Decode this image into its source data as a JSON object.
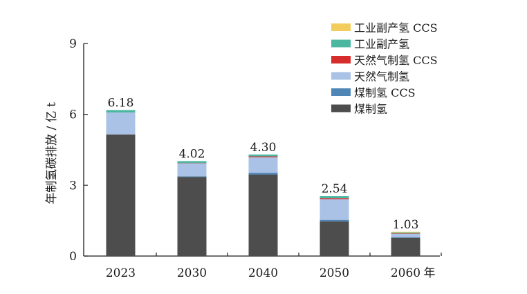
{
  "chart_data": {
    "type": "bar",
    "stacked": true,
    "title": "",
    "xlabel": "",
    "x_unit_suffix": "年",
    "ylabel": "年制氢碳排放 / 亿 t",
    "ylim": [
      0,
      9
    ],
    "yticks": [
      0,
      3,
      6,
      9
    ],
    "categories": [
      "2023",
      "2030",
      "2040",
      "2050",
      "2060"
    ],
    "totals": [
      "6.18",
      "4.02",
      "4.30",
      "2.54",
      "1.03"
    ],
    "legend_position": "top-right",
    "series": [
      {
        "name": "煤制氢",
        "color": "#4d4d4d",
        "values": [
          5.15,
          3.35,
          3.45,
          1.47,
          0.77
        ]
      },
      {
        "name": "煤制氢 CCS",
        "color": "#4f86b6",
        "values": [
          0.0,
          0.03,
          0.07,
          0.06,
          0.03
        ]
      },
      {
        "name": "天然气制氢",
        "color": "#aac2e6",
        "values": [
          0.93,
          0.55,
          0.66,
          0.88,
          0.14
        ]
      },
      {
        "name": "天然气制氢 CCS",
        "color": "#d62c2c",
        "values": [
          0.0,
          0.01,
          0.04,
          0.04,
          0.02
        ]
      },
      {
        "name": "工业副产氢",
        "color": "#4bb7a0",
        "values": [
          0.1,
          0.08,
          0.08,
          0.09,
          0.04
        ]
      },
      {
        "name": "工业副产氢 CCS",
        "color": "#f2cc5c",
        "values": [
          0.0,
          0.0,
          0.0,
          0.0,
          0.03
        ]
      }
    ]
  }
}
